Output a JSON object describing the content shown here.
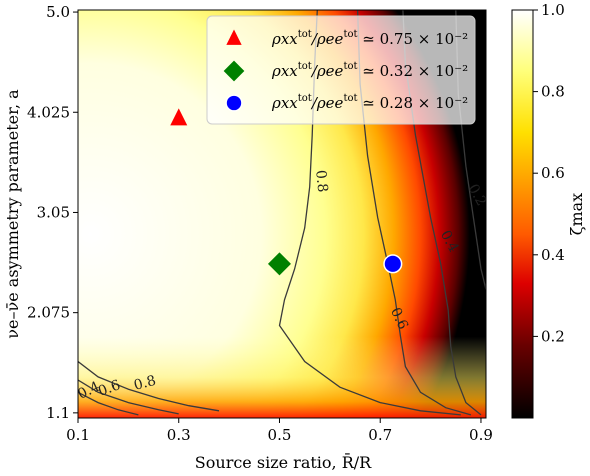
{
  "chart_data": {
    "type": "heatmap",
    "xlabel": "Source size ratio, R̄/R",
    "ylabel": "νe–ν̄e asymmetry parameter, a",
    "colorbar_label": "ζmax",
    "x_ticks": [
      "0.1",
      "0.3",
      "0.5",
      "0.7",
      "0.9"
    ],
    "x_tick_values": [
      0.1,
      0.3,
      0.5,
      0.7,
      0.9
    ],
    "y_ticks": [
      "1.1",
      "2.075",
      "3.05",
      "4.025",
      "5.0"
    ],
    "y_tick_values": [
      1.1,
      2.075,
      3.05,
      4.025,
      5.0
    ],
    "xlim": [
      0.1,
      0.91
    ],
    "ylim": [
      1.05,
      5.02
    ],
    "colorbar_ticks": [
      "0.2",
      "0.4",
      "0.6",
      "0.8",
      "1.0"
    ],
    "colorbar_tick_values": [
      0.2,
      0.4,
      0.6,
      0.8,
      1.0
    ],
    "colorbar_range": [
      0.0,
      1.0
    ],
    "colormap": "hot",
    "legend_position": "top-right",
    "markers": [
      {
        "label_main": "ρxx/ρee",
        "label_value": "≃ 0.75 × 10⁻²",
        "label_sup": "tot",
        "shape": "triangle",
        "color": "#ff0000",
        "x": 0.3,
        "y": 3.96
      },
      {
        "label_main": "ρxx/ρee",
        "label_value": "≃ 0.32 × 10⁻²",
        "label_sup": "tot",
        "shape": "diamond",
        "color": "#008000",
        "x": 0.5,
        "y": 2.55
      },
      {
        "label_main": "ρxx/ρee",
        "label_value": "≃ 0.28 × 10⁻²",
        "label_sup": "tot",
        "shape": "circle",
        "color": "#0000ff",
        "x": 0.725,
        "y": 2.55
      }
    ],
    "contour_labels": [
      {
        "text": "0.8",
        "x": 0.575,
        "y": 3.35,
        "angle": 84
      },
      {
        "text": "0.6",
        "x": 0.73,
        "y": 2.0,
        "angle": 65
      },
      {
        "text": "0.4",
        "x": 0.83,
        "y": 2.75,
        "angle": 62
      },
      {
        "text": "0.2",
        "x": 0.885,
        "y": 3.2,
        "angle": 62
      },
      {
        "text": "0.8",
        "x": 0.235,
        "y": 1.35,
        "angle": -15
      },
      {
        "text": "0.6",
        "x": 0.165,
        "y": 1.3,
        "angle": -20
      },
      {
        "text": "0.4",
        "x": 0.125,
        "y": 1.28,
        "angle": -25
      }
    ]
  }
}
